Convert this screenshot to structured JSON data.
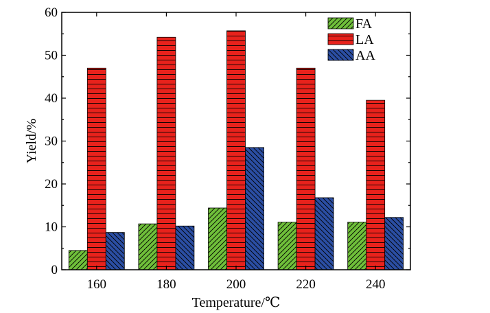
{
  "chart_data": {
    "type": "bar",
    "xlabel": "Temperature/℃",
    "ylabel": "Yield/%",
    "categories": [
      "160",
      "180",
      "200",
      "220",
      "240"
    ],
    "ylim": [
      0,
      60
    ],
    "yticks": [
      0,
      10,
      20,
      30,
      40,
      50,
      60
    ],
    "grid": false,
    "legend_position": "top-right",
    "series": [
      {
        "name": "FA",
        "values": [
          4.5,
          10.7,
          14.4,
          11.1,
          11.1
        ],
        "color": "#6fbf3a",
        "pattern": "diagonal-right"
      },
      {
        "name": "LA",
        "values": [
          47.0,
          54.2,
          55.7,
          47.0,
          39.5
        ],
        "color": "#e8221c",
        "pattern": "horizontal"
      },
      {
        "name": "AA",
        "values": [
          8.7,
          10.2,
          28.5,
          16.8,
          12.2
        ],
        "color": "#2b4ea3",
        "pattern": "diagonal-left"
      }
    ]
  }
}
